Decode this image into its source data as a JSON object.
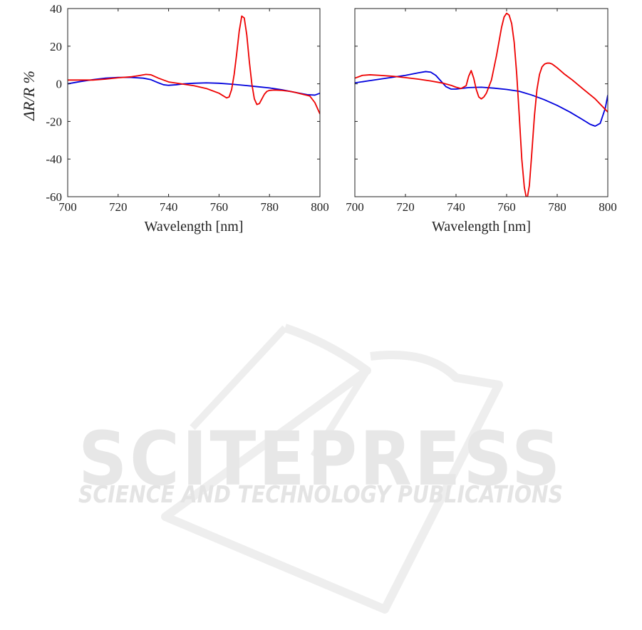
{
  "watermark": {
    "title": "SCITEPRESS",
    "subtitle": "SCIENCE AND TECHNOLOGY PUBLICATIONS"
  },
  "colors": {
    "series_1": "#0000dd",
    "series_2": "#ee0000",
    "axis": "#222222"
  },
  "chart_data": [
    {
      "type": "line",
      "title": "",
      "xlabel": "Wavelength [nm]",
      "ylabel": "ΔR/R %",
      "xlim": [
        700,
        800
      ],
      "ylim": [
        -60,
        40
      ],
      "xticks": [
        700,
        720,
        740,
        760,
        780,
        800
      ],
      "yticks": [
        40,
        20,
        0,
        -20,
        -40,
        -60
      ],
      "xtick_labels": [
        "700",
        "720",
        "740",
        "760",
        "780",
        "800"
      ],
      "ytick_labels": [
        "40",
        "20",
        "0",
        "-20",
        "-40",
        "-60"
      ],
      "grid": false,
      "series": [
        {
          "color": "#0000dd",
          "x": [
            700,
            705,
            710,
            715,
            720,
            725,
            730,
            733,
            736,
            738,
            740,
            743,
            746,
            750,
            755,
            760,
            765,
            770,
            775,
            780,
            785,
            790,
            795,
            798,
            800
          ],
          "y": [
            0,
            1.2,
            2.2,
            3,
            3.4,
            3.4,
            3,
            2.2,
            0.5,
            -0.5,
            -0.8,
            -0.5,
            0,
            0.3,
            0.5,
            0.3,
            -0.2,
            -0.8,
            -1.5,
            -2.2,
            -3.2,
            -4.5,
            -5.8,
            -6,
            -5
          ]
        },
        {
          "color": "#ee0000",
          "x": [
            700,
            705,
            710,
            715,
            720,
            725,
            728,
            731,
            733,
            736,
            740,
            745,
            750,
            755,
            760,
            763,
            764,
            765,
            766,
            767,
            768,
            769,
            770,
            771,
            772,
            773,
            774,
            775,
            776,
            777,
            778,
            779,
            780,
            782,
            785,
            788,
            790,
            793,
            796,
            798,
            800
          ],
          "y": [
            2,
            2,
            2,
            2.5,
            3.2,
            3.7,
            4.3,
            5,
            4.8,
            3,
            1,
            0,
            -1,
            -2.5,
            -5,
            -7.5,
            -7,
            -3,
            5,
            16,
            28,
            36,
            35,
            26,
            12,
            0,
            -8,
            -11,
            -10.5,
            -8,
            -5.5,
            -4,
            -3.5,
            -3.3,
            -3.5,
            -4,
            -4.5,
            -5.5,
            -6.5,
            -10,
            -16
          ]
        }
      ]
    },
    {
      "type": "line",
      "title": "",
      "xlabel": "Wavelength [nm]",
      "ylabel": "",
      "xlim": [
        700,
        800
      ],
      "ylim": [
        -60,
        40
      ],
      "xticks": [
        700,
        720,
        740,
        760,
        780,
        800
      ],
      "yticks": [
        40,
        20,
        0,
        -20,
        -40,
        -60
      ],
      "xtick_labels": [
        "700",
        "720",
        "740",
        "760",
        "780",
        "800"
      ],
      "ytick_labels": [],
      "grid": false,
      "series": [
        {
          "color": "#0000dd",
          "x": [
            700,
            705,
            710,
            715,
            720,
            725,
            728,
            730,
            732,
            734,
            736,
            738,
            740,
            745,
            750,
            755,
            760,
            765,
            770,
            775,
            780,
            785,
            790,
            793,
            795,
            797,
            799,
            800
          ],
          "y": [
            0.5,
            1.5,
            2.5,
            3.5,
            4.5,
            5.8,
            6.5,
            6.2,
            4.5,
            1.5,
            -1.5,
            -2.8,
            -2.8,
            -2,
            -1.8,
            -2.3,
            -3,
            -4,
            -6,
            -8.5,
            -11.5,
            -15,
            -19,
            -21.5,
            -22.5,
            -21,
            -13,
            -6
          ]
        },
        {
          "color": "#ee0000",
          "x": [
            700,
            703,
            706,
            710,
            715,
            720,
            725,
            730,
            735,
            738,
            740,
            742,
            744,
            745,
            746,
            747,
            748,
            749,
            750,
            751,
            752,
            754,
            756,
            758,
            759,
            760,
            761,
            762,
            763,
            764,
            765,
            766,
            767,
            768,
            769,
            770,
            771,
            772,
            773,
            774,
            775,
            776,
            777,
            778,
            780,
            783,
            786,
            790,
            795,
            800
          ],
          "y": [
            3,
            4.5,
            4.8,
            4.5,
            4,
            3.3,
            2.5,
            1.5,
            0.3,
            -0.8,
            -1.8,
            -2.5,
            -1,
            4,
            7,
            3,
            -3,
            -7,
            -8,
            -7,
            -5,
            2,
            15,
            30,
            35.5,
            37.5,
            36.5,
            32,
            22,
            5,
            -17,
            -40,
            -55,
            -62,
            -54,
            -36,
            -17,
            -3,
            5,
            9,
            10.5,
            11,
            11,
            10.5,
            8.5,
            5,
            2,
            -2.5,
            -8,
            -15
          ]
        }
      ]
    }
  ]
}
